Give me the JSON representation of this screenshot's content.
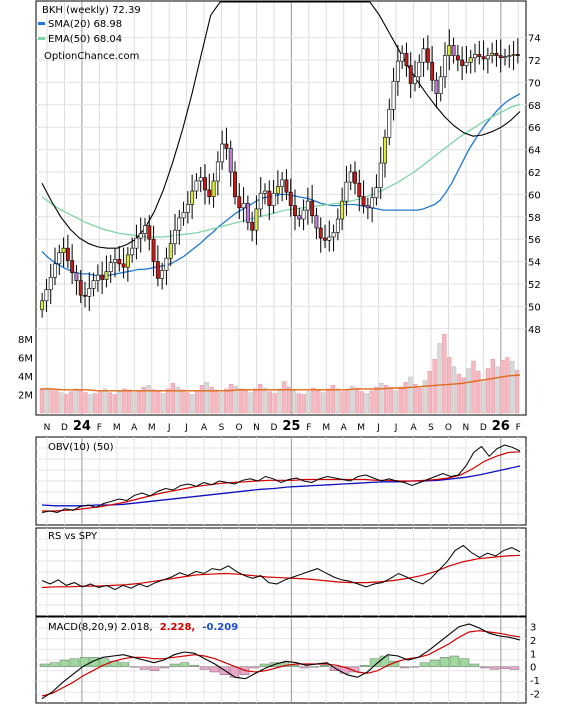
{
  "chart_data": {
    "type": "stock_chart",
    "title": "BKH (weekly) 72.39",
    "legend": [
      {
        "label": "SMA(20) 68.98",
        "color": "#1f78d1"
      },
      {
        "label": "EMA(50) 68.04",
        "color": "#7fd4a8"
      }
    ],
    "watermark": "OptionChance.com",
    "price_axis": {
      "ylim": [
        47,
        77
      ],
      "ticks": [
        48,
        50,
        52,
        54,
        56,
        58,
        60,
        62,
        64,
        66,
        68,
        70,
        72,
        74
      ]
    },
    "volume_axis": {
      "ticks": [
        "2M",
        "4M",
        "6M",
        "8M"
      ],
      "tick_values": [
        2,
        4,
        6,
        8
      ],
      "unit": "M",
      "ylim": [
        0,
        9.5
      ]
    },
    "x_labels": [
      "N",
      "D",
      "24",
      "F",
      "M",
      "A",
      "M",
      "J",
      "J",
      "A",
      "S",
      "O",
      "N",
      "D",
      "25",
      "F",
      "M",
      "A",
      "M",
      "J",
      "J",
      "A",
      "S",
      "O",
      "N",
      "D",
      "26",
      "F"
    ],
    "price_data": {
      "weeks": 112,
      "close": [
        50.5,
        51.5,
        52.6,
        53.8,
        54.8,
        55.2,
        54.1,
        53.0,
        52.3,
        51.0,
        50.9,
        51.6,
        52.3,
        52.8,
        52.4,
        53.1,
        53.9,
        54.2,
        53.8,
        53.5,
        54.6,
        55.2,
        56.1,
        56.5,
        57.2,
        56.0,
        54.0,
        52.5,
        53.2,
        54.3,
        55.6,
        56.8,
        57.9,
        58.4,
        59.1,
        60.3,
        61.2,
        61.5,
        60.4,
        59.8,
        61.2,
        62.9,
        64.5,
        64.1,
        62.0,
        59.8,
        58.8,
        59.2,
        57.5,
        56.8,
        58.7,
        60.1,
        60.3,
        59.0,
        60.1,
        60.7,
        61.3,
        60.2,
        59.0,
        58.1,
        57.8,
        58.6,
        59.4,
        58.1,
        57.0,
        56.1,
        55.9,
        56.2,
        56.6,
        57.8,
        59.4,
        61.1,
        62.0,
        61.0,
        59.8,
        59.0,
        58.8,
        59.7,
        60.6,
        62.8,
        65.1,
        67.6,
        70.1,
        71.9,
        72.6,
        71.5,
        69.9,
        70.5,
        71.8,
        73.0,
        71.8,
        70.2,
        69.0,
        70.5,
        72.4,
        73.3,
        72.39,
        72.0,
        71.5,
        71.8,
        72.2,
        72.5,
        72.3,
        72.1,
        72.4,
        72.6,
        72.39,
        72.2,
        72.3,
        72.4,
        72.5,
        72.39
      ],
      "sma20": [
        54.9,
        54.4,
        54.0,
        53.7,
        53.4,
        53.2,
        53.0,
        52.9,
        52.9,
        52.8,
        52.7,
        52.7,
        52.8,
        52.9,
        53.0,
        53.1,
        53.2,
        53.3,
        53.3,
        53.4,
        53.5,
        53.6,
        53.7,
        53.9,
        54.2,
        54.5,
        54.9,
        55.3,
        55.7,
        56.2,
        56.6,
        57.1,
        57.5,
        57.9,
        58.3,
        58.6,
        58.9,
        59.2,
        59.5,
        59.7,
        59.8,
        59.9,
        60.0,
        60.0,
        59.9,
        59.8,
        59.7,
        59.6,
        59.4,
        59.2,
        59.1,
        59.0,
        59.0,
        59.1,
        59.1,
        59.1,
        59.0,
        58.9,
        58.8,
        58.7,
        58.6,
        58.6,
        58.6,
        58.6,
        58.6,
        58.6,
        58.6,
        58.7,
        58.9,
        59.1,
        59.5,
        60.2,
        61.0,
        62.0,
        63.0,
        64.0,
        64.8,
        65.6,
        66.3,
        66.9,
        67.5,
        68.0,
        68.4,
        68.7,
        68.98
      ],
      "ema50": [
        59.8,
        59.2,
        58.7,
        58.3,
        57.9,
        57.5,
        57.2,
        56.9,
        56.7,
        56.5,
        56.4,
        56.3,
        56.2,
        56.2,
        56.2,
        56.3,
        56.4,
        56.5,
        56.6,
        56.8,
        57.0,
        57.2,
        57.4,
        57.6,
        57.8,
        58.0,
        58.2,
        58.4,
        58.6,
        58.7,
        58.8,
        58.9,
        59.0,
        59.1,
        59.2,
        59.3,
        59.5,
        59.7,
        60.0,
        60.3,
        60.7,
        61.1,
        61.6,
        62.1,
        62.7,
        63.3,
        63.9,
        64.5,
        65.1,
        65.6,
        66.1,
        66.6,
        67.0,
        67.4,
        67.8,
        68.04
      ],
      "sma_long": [
        61.0,
        59.4,
        58.0,
        56.9,
        56.1,
        55.6,
        55.3,
        55.2,
        55.2,
        55.5,
        56.0,
        57.0,
        58.5,
        60.5,
        63.0,
        65.8,
        69.0,
        72.5,
        76.0,
        79.0,
        82.0,
        85.0,
        88.0,
        90.5,
        92.0,
        93.0,
        93.5,
        93.5,
        92.0,
        90.0,
        88.0,
        86.0,
        84.0,
        82.0,
        80.0,
        78.0,
        76.0,
        74.5,
        73.0,
        71.5,
        70.2,
        69.0,
        67.9,
        66.9,
        66.1,
        65.5,
        65.2,
        65.3,
        65.6,
        66.0,
        66.6,
        67.4
      ]
    },
    "volume": [
      2.5,
      2.7,
      2.6,
      2.4,
      2.2,
      2.0,
      2.3,
      2.6,
      2.4,
      2.2,
      2.0,
      2.1,
      2.4,
      2.6,
      2.2,
      2.0,
      2.3,
      2.6,
      2.5,
      2.2,
      2.4,
      2.8,
      3.0,
      2.5,
      2.3,
      2.1,
      2.6,
      3.2,
      2.8,
      2.5,
      2.2,
      2.0,
      2.4,
      3.0,
      3.3,
      2.8,
      2.5,
      2.2,
      2.6,
      3.1,
      2.9,
      2.6,
      2.4,
      2.2,
      2.6,
      3.1,
      2.7,
      2.3,
      2.1,
      2.6,
      3.4,
      2.8,
      2.4,
      2.1,
      2.0,
      2.3,
      2.7,
      2.4,
      2.2,
      2.6,
      3.0,
      2.6,
      2.3,
      2.5,
      2.9,
      2.7,
      2.3,
      2.1,
      2.4,
      2.8,
      3.2,
      3.0,
      2.6,
      2.4,
      2.8,
      3.3,
      3.9,
      3.1,
      2.7,
      3.5,
      4.5,
      5.8,
      7.5,
      8.5,
      6.0,
      5.0,
      4.2,
      3.8,
      4.8,
      5.6,
      4.5,
      3.6,
      4.8,
      5.8,
      5.0,
      5.7,
      6.0,
      5.6,
      4.6
    ],
    "volume_avg": [
      2.6,
      2.6,
      2.5,
      2.5,
      2.5,
      2.4,
      2.4,
      2.4,
      2.4,
      2.4,
      2.4,
      2.4,
      2.4,
      2.4,
      2.4,
      2.4,
      2.4,
      2.5,
      2.5,
      2.5,
      2.5,
      2.5,
      2.5,
      2.5,
      2.5,
      2.5,
      2.5,
      2.6,
      2.6,
      2.6,
      2.7,
      2.7,
      2.8,
      2.9,
      3.0,
      3.1,
      3.2,
      3.4,
      3.6,
      3.8,
      4.0,
      4.1
    ],
    "panels": [
      {
        "name": "obv",
        "label": "OBV(10) (50)",
        "obv": [
          0.1,
          0.12,
          0.1,
          0.15,
          0.13,
          0.18,
          0.2,
          0.17,
          0.22,
          0.25,
          0.28,
          0.26,
          0.33,
          0.36,
          0.32,
          0.38,
          0.42,
          0.4,
          0.46,
          0.48,
          0.45,
          0.5,
          0.47,
          0.52,
          0.5,
          0.48,
          0.53,
          0.55,
          0.52,
          0.58,
          0.55,
          0.5,
          0.54,
          0.56,
          0.52,
          0.5,
          0.55,
          0.58,
          0.56,
          0.54,
          0.52,
          0.58,
          0.6,
          0.56,
          0.52,
          0.55,
          0.52,
          0.5,
          0.46,
          0.5,
          0.54,
          0.58,
          0.62,
          0.58,
          0.6,
          0.72,
          0.9,
          0.98,
          0.85,
          0.95,
          1.0,
          0.97,
          0.92
        ],
        "sig1": [
          0.12,
          0.12,
          0.13,
          0.14,
          0.16,
          0.18,
          0.21,
          0.24,
          0.28,
          0.32,
          0.36,
          0.39,
          0.42,
          0.45,
          0.47,
          0.49,
          0.5,
          0.51,
          0.52,
          0.53,
          0.53,
          0.53,
          0.54,
          0.54,
          0.54,
          0.54,
          0.54,
          0.54,
          0.53,
          0.53,
          0.52,
          0.52,
          0.53,
          0.54,
          0.56,
          0.6,
          0.68,
          0.78,
          0.85,
          0.9,
          0.91
        ],
        "sig2": [
          0.2,
          0.19,
          0.19,
          0.19,
          0.2,
          0.2,
          0.21,
          0.23,
          0.25,
          0.27,
          0.29,
          0.31,
          0.33,
          0.35,
          0.37,
          0.39,
          0.41,
          0.42,
          0.44,
          0.45,
          0.46,
          0.47,
          0.48,
          0.49,
          0.5,
          0.51,
          0.51,
          0.52,
          0.52,
          0.53,
          0.55,
          0.57,
          0.6,
          0.64,
          0.68,
          0.72
        ]
      },
      {
        "name": "rs",
        "label": "RS vs SPY",
        "rs": [
          0.45,
          0.4,
          0.46,
          0.38,
          0.42,
          0.36,
          0.4,
          0.35,
          0.38,
          0.32,
          0.38,
          0.34,
          0.4,
          0.36,
          0.42,
          0.46,
          0.5,
          0.56,
          0.52,
          0.58,
          0.55,
          0.62,
          0.6,
          0.66,
          0.58,
          0.52,
          0.48,
          0.52,
          0.42,
          0.4,
          0.46,
          0.5,
          0.54,
          0.58,
          0.62,
          0.56,
          0.5,
          0.46,
          0.44,
          0.4,
          0.36,
          0.4,
          0.42,
          0.48,
          0.55,
          0.5,
          0.44,
          0.4,
          0.48,
          0.6,
          0.72,
          0.88,
          0.95,
          0.85,
          0.78,
          0.84,
          0.8,
          0.88,
          0.92,
          0.86
        ],
        "sig": [
          0.35,
          0.36,
          0.36,
          0.37,
          0.37,
          0.38,
          0.39,
          0.41,
          0.44,
          0.47,
          0.5,
          0.53,
          0.54,
          0.55,
          0.54,
          0.52,
          0.5,
          0.49,
          0.48,
          0.47,
          0.45,
          0.43,
          0.42,
          0.42,
          0.43,
          0.45,
          0.48,
          0.52,
          0.58,
          0.66,
          0.72,
          0.76,
          0.78,
          0.8,
          0.81
        ]
      },
      {
        "name": "macd",
        "label": "MACD(8,20,9) 2.018,",
        "val1": "2.228,",
        "val2": "-0.209",
        "val1_color": "#d40000",
        "val2_color": "#1f4fd1",
        "ylim": [
          -2.5,
          3.5
        ],
        "ticks": [
          "3",
          "2",
          "1",
          "0",
          "-1",
          "-2"
        ],
        "tick_values": [
          3,
          2,
          1,
          0,
          -1,
          -2
        ],
        "macd": [
          -2.4,
          -1.9,
          -1.2,
          -0.6,
          0.0,
          0.4,
          0.7,
          0.8,
          0.9,
          0.7,
          0.5,
          0.3,
          0.5,
          0.9,
          1.1,
          1.0,
          0.6,
          0.2,
          -0.3,
          -0.8,
          -0.9,
          -0.5,
          -0.1,
          0.2,
          0.4,
          0.3,
          0.1,
          0.2,
          0.3,
          -0.2,
          -0.6,
          -0.8,
          -0.4,
          0.3,
          0.9,
          0.8,
          0.5,
          0.7,
          1.2,
          1.8,
          2.4,
          3.0,
          3.2,
          2.9,
          2.5,
          2.3,
          2.2,
          2.0
        ],
        "signal": [
          -2.2,
          -2.0,
          -1.6,
          -1.2,
          -0.7,
          -0.3,
          0.1,
          0.4,
          0.6,
          0.7,
          0.7,
          0.6,
          0.6,
          0.7,
          0.8,
          0.9,
          0.8,
          0.6,
          0.3,
          0.0,
          -0.3,
          -0.4,
          -0.3,
          -0.1,
          0.1,
          0.2,
          0.2,
          0.2,
          0.2,
          0.1,
          -0.1,
          -0.4,
          -0.5,
          -0.3,
          0.1,
          0.4,
          0.6,
          0.7,
          0.9,
          1.3,
          1.7,
          2.2,
          2.6,
          2.7,
          2.6,
          2.5,
          2.35,
          2.228
        ],
        "hist": [
          0.2,
          0.3,
          0.5,
          0.6,
          0.7,
          0.7,
          0.6,
          0.4,
          0.3,
          0.0,
          -0.2,
          -0.3,
          -0.1,
          0.2,
          0.3,
          0.1,
          -0.2,
          -0.4,
          -0.6,
          -0.8,
          -0.6,
          -0.1,
          0.2,
          0.3,
          0.3,
          0.1,
          -0.1,
          0.0,
          0.1,
          -0.3,
          -0.5,
          -0.4,
          0.1,
          0.6,
          0.8,
          0.4,
          -0.1,
          0.0,
          0.3,
          0.5,
          0.7,
          0.8,
          0.6,
          0.2,
          -0.1,
          -0.2,
          -0.15,
          -0.209
        ]
      }
    ]
  }
}
